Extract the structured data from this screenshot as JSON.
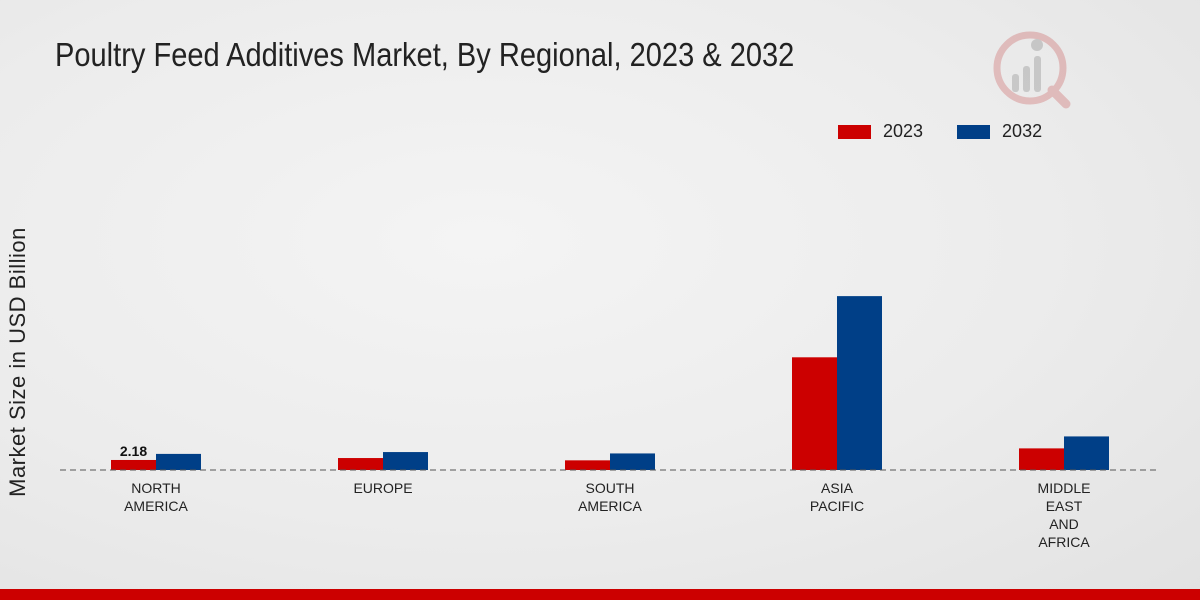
{
  "colors": {
    "s2023": "#cc0000",
    "s2032": "#003f87",
    "footer": "#cc0000"
  },
  "chart_data": {
    "type": "bar",
    "title": "Poultry Feed Additives Market, By Regional, 2023 & 2032",
    "ylabel": "Market Size in USD Billion",
    "xlabel": "",
    "categories": [
      [
        "NORTH",
        "AMERICA"
      ],
      [
        "EUROPE"
      ],
      [
        "SOUTH",
        "AMERICA"
      ],
      [
        "ASIA",
        "PACIFIC"
      ],
      [
        "MIDDLE",
        "EAST",
        "AND",
        "AFRICA"
      ]
    ],
    "series": [
      {
        "name": "2023",
        "values": [
          2.18,
          2.6,
          2.1,
          24.5,
          4.7
        ]
      },
      {
        "name": "2032",
        "values": [
          3.5,
          3.9,
          3.6,
          37.8,
          7.3
        ]
      }
    ],
    "data_labels": [
      {
        "series": 0,
        "index": 0,
        "text": "2.18"
      }
    ],
    "ylim": [
      0,
      50
    ],
    "legend": "top-right",
    "grid": false
  }
}
